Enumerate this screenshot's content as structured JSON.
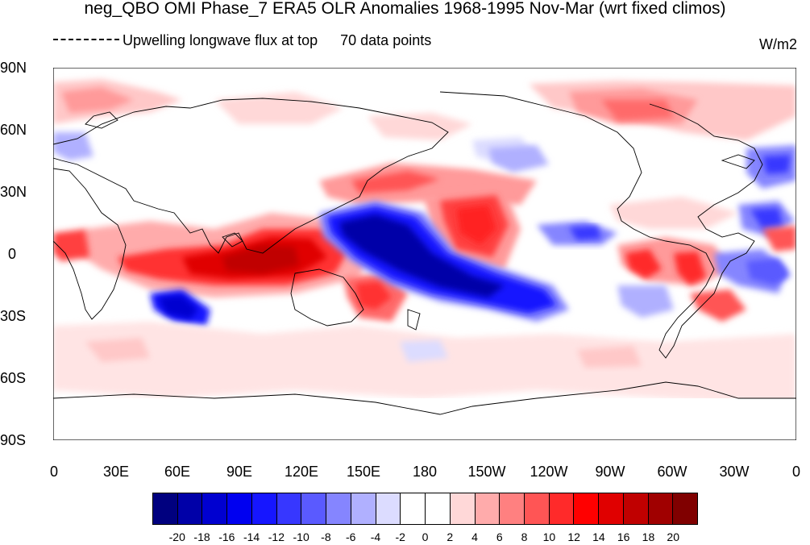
{
  "title": "neg_QBO OMI Phase_7 ERA5 OLR Anomalies 1968-1995 Nov-Mar (wrt fixed climos)",
  "subtitle_left": "Upwelling longwave flux at top",
  "subtitle_mid": "70 data points",
  "units": "W/m2",
  "lat_labels": [
    "90N",
    "60N",
    "30N",
    "0",
    "30S",
    "60S",
    "90S"
  ],
  "lon_labels": [
    "0",
    "30E",
    "60E",
    "90E",
    "120E",
    "150E",
    "180",
    "150W",
    "120W",
    "90W",
    "60W",
    "30W",
    "0"
  ],
  "colorbar": {
    "colors": [
      "#00007f",
      "#0000a8",
      "#0000d0",
      "#0000f0",
      "#1616ff",
      "#3737ff",
      "#5a5aff",
      "#8585ff",
      "#b0b0ff",
      "#dcdcff",
      "#ffffff",
      "#ffffff",
      "#ffd8d8",
      "#ffabab",
      "#ff8080",
      "#ff5555",
      "#ff2a2a",
      "#ff0000",
      "#e00000",
      "#c00000",
      "#a00000",
      "#800000"
    ],
    "labels": [
      "-20",
      "-18",
      "-16",
      "-14",
      "-12",
      "-10",
      "-8",
      "-6",
      "-4",
      "-2",
      "0",
      "2",
      "4",
      "6",
      "8",
      "10",
      "12",
      "14",
      "16",
      "18",
      "20"
    ]
  }
}
